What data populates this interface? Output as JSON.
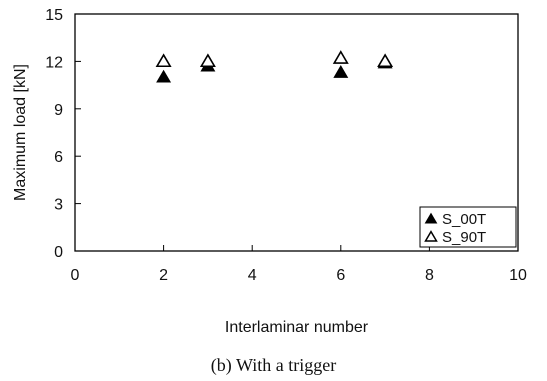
{
  "chart_data": {
    "type": "scatter",
    "title": "",
    "xlabel": "Interlaminar number",
    "ylabel": "Maximum load [kN]",
    "xlim": [
      0,
      10
    ],
    "ylim": [
      0,
      15
    ],
    "xticks": [
      0,
      2,
      4,
      6,
      8,
      10
    ],
    "yticks": [
      0,
      3,
      6,
      9,
      12,
      15
    ],
    "grid": false,
    "legend_position": "bottom-right",
    "series": [
      {
        "name": "S_00T",
        "marker": "filled-triangle",
        "color": "#000000",
        "points": [
          {
            "x": 2,
            "y": 11.0
          },
          {
            "x": 3,
            "y": 11.7
          },
          {
            "x": 3,
            "y": 12.0
          },
          {
            "x": 6,
            "y": 11.3
          },
          {
            "x": 7,
            "y": 11.9
          }
        ]
      },
      {
        "name": "S_90T",
        "marker": "open-triangle",
        "color": "#000000",
        "points": [
          {
            "x": 2,
            "y": 12.0
          },
          {
            "x": 3,
            "y": 12.0
          },
          {
            "x": 6,
            "y": 12.2
          },
          {
            "x": 7,
            "y": 12.0
          }
        ]
      }
    ]
  },
  "caption": "(b)  With a trigger"
}
